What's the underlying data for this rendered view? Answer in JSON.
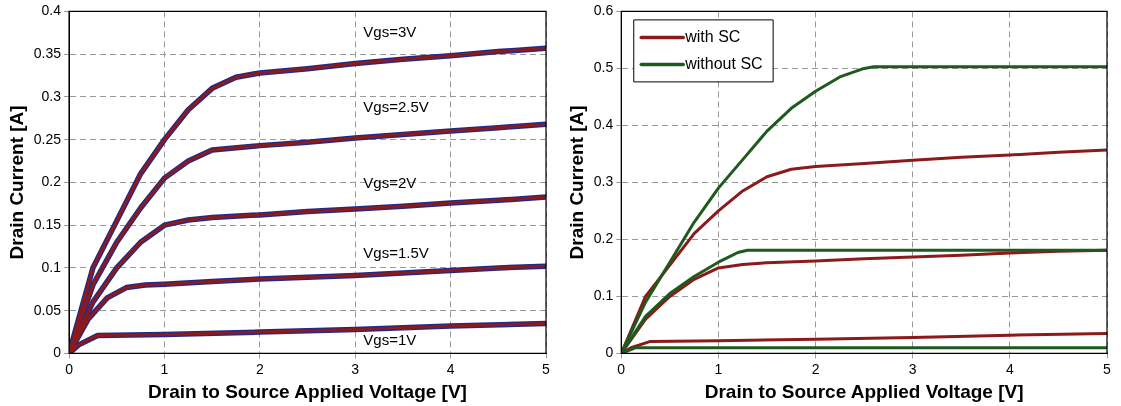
{
  "chart_data": [
    {
      "type": "line",
      "xlabel": "Drain to Source Applied Voltage [V]",
      "ylabel": "Drain Current [A]",
      "xlim": [
        0,
        5
      ],
      "xticks": [
        0,
        1,
        2,
        3,
        4,
        5
      ],
      "ylim": [
        0,
        0.4
      ],
      "yticks": [
        0,
        0.05,
        0.1,
        0.15,
        0.2,
        0.25,
        0.3,
        0.35,
        0.4
      ],
      "grid": true,
      "legend": false,
      "marker": "none",
      "line_style": "solid",
      "annotations": [
        "Vgs=3V",
        "Vgs=2.5V",
        "Vgs=2V",
        "Vgs=1.5V",
        "Vgs=1V"
      ],
      "series": [
        {
          "color": "#1f2a8c",
          "x": [
            0,
            0.25,
            0.5,
            0.75,
            1,
            1.25,
            1.5,
            1.75,
            2,
            2.5,
            3,
            3.5,
            4,
            4.5,
            5
          ],
          "values": [
            0,
            0.1,
            0.155,
            0.21,
            0.25,
            0.285,
            0.31,
            0.323,
            0.328,
            0.333,
            0.339,
            0.344,
            0.348,
            0.353,
            0.357
          ]
        },
        {
          "color": "#1f2a8c",
          "x": [
            0,
            0.25,
            0.5,
            0.75,
            1,
            1.25,
            1.5,
            2,
            2.5,
            3,
            3.5,
            4,
            4.5,
            5
          ],
          "values": [
            0,
            0.08,
            0.13,
            0.17,
            0.205,
            0.225,
            0.238,
            0.243,
            0.247,
            0.252,
            0.256,
            0.26,
            0.264,
            0.268
          ]
        },
        {
          "color": "#1f2a8c",
          "x": [
            0,
            0.25,
            0.5,
            0.75,
            1,
            1.25,
            1.5,
            2,
            2.5,
            3,
            3.5,
            4,
            4.5,
            5
          ],
          "values": [
            0,
            0.06,
            0.1,
            0.13,
            0.15,
            0.156,
            0.159,
            0.162,
            0.166,
            0.169,
            0.172,
            0.176,
            0.179,
            0.183
          ]
        },
        {
          "color": "#1f2a8c",
          "x": [
            0,
            0.2,
            0.4,
            0.6,
            0.8,
            1,
            1.5,
            2,
            2.5,
            3,
            3.5,
            4,
            4.5,
            5
          ],
          "values": [
            0,
            0.04,
            0.065,
            0.077,
            0.08,
            0.081,
            0.084,
            0.087,
            0.089,
            0.091,
            0.094,
            0.097,
            0.1,
            0.102
          ]
        },
        {
          "color": "#1f2a8c",
          "x": [
            0,
            0.1,
            0.3,
            1,
            2,
            3,
            4,
            5
          ],
          "values": [
            0,
            0.01,
            0.021,
            0.022,
            0.025,
            0.028,
            0.032,
            0.035
          ]
        },
        {
          "color": "#8b1a1a",
          "x": [
            0,
            0.25,
            0.5,
            0.75,
            1,
            1.25,
            1.5,
            1.75,
            2,
            2.5,
            3,
            3.5,
            4,
            4.5,
            5
          ],
          "values": [
            0,
            0.1,
            0.155,
            0.21,
            0.25,
            0.285,
            0.31,
            0.323,
            0.328,
            0.333,
            0.339,
            0.344,
            0.348,
            0.353,
            0.357
          ]
        },
        {
          "color": "#8b1a1a",
          "x": [
            0,
            0.25,
            0.5,
            0.75,
            1,
            1.25,
            1.5,
            2,
            2.5,
            3,
            3.5,
            4,
            4.5,
            5
          ],
          "values": [
            0,
            0.08,
            0.13,
            0.17,
            0.205,
            0.225,
            0.238,
            0.243,
            0.247,
            0.252,
            0.256,
            0.26,
            0.264,
            0.268
          ]
        },
        {
          "color": "#8b1a1a",
          "x": [
            0,
            0.25,
            0.5,
            0.75,
            1,
            1.25,
            1.5,
            2,
            2.5,
            3,
            3.5,
            4,
            4.5,
            5
          ],
          "values": [
            0,
            0.06,
            0.1,
            0.13,
            0.15,
            0.156,
            0.159,
            0.162,
            0.166,
            0.169,
            0.172,
            0.176,
            0.179,
            0.183
          ]
        },
        {
          "color": "#8b1a1a",
          "x": [
            0,
            0.2,
            0.4,
            0.6,
            0.8,
            1,
            1.5,
            2,
            2.5,
            3,
            3.5,
            4,
            4.5,
            5
          ],
          "values": [
            0,
            0.04,
            0.065,
            0.077,
            0.08,
            0.081,
            0.084,
            0.087,
            0.089,
            0.091,
            0.094,
            0.097,
            0.1,
            0.102
          ]
        },
        {
          "color": "#8b1a1a",
          "x": [
            0,
            0.1,
            0.3,
            1,
            2,
            3,
            4,
            5
          ],
          "values": [
            0,
            0.01,
            0.021,
            0.022,
            0.025,
            0.028,
            0.032,
            0.035
          ]
        }
      ]
    },
    {
      "type": "line",
      "xlabel": "Drain to Source Applied Voltage [V]",
      "ylabel": "Drain Current [A]",
      "xlim": [
        0,
        5
      ],
      "xticks": [
        0,
        1,
        2,
        3,
        4,
        5
      ],
      "ylim": [
        0,
        0.6
      ],
      "yticks": [
        0,
        0.1,
        0.2,
        0.3,
        0.4,
        0.5,
        0.6
      ],
      "grid": true,
      "legend": "top left",
      "marker": "none",
      "line_style": "solid",
      "series": [
        {
          "name": "with SC",
          "color": "#8b1a1a",
          "x": [
            0,
            0.25,
            0.5,
            0.75,
            1,
            1.25,
            1.5,
            1.75,
            2,
            2.5,
            3,
            3.5,
            4,
            4.5,
            5
          ],
          "values": [
            0,
            0.1,
            0.155,
            0.21,
            0.25,
            0.285,
            0.31,
            0.323,
            0.328,
            0.333,
            0.339,
            0.344,
            0.348,
            0.353,
            0.357
          ]
        },
        {
          "color": "#8b1a1a",
          "x": [
            0,
            0.25,
            0.5,
            0.75,
            1,
            1.25,
            1.5,
            2,
            2.5,
            3,
            3.5,
            4,
            4.5,
            5
          ],
          "values": [
            0,
            0.06,
            0.1,
            0.13,
            0.15,
            0.156,
            0.159,
            0.162,
            0.166,
            0.169,
            0.172,
            0.176,
            0.179,
            0.181
          ]
        },
        {
          "color": "#8b1a1a",
          "x": [
            0,
            0.1,
            0.3,
            1,
            2,
            3,
            4,
            5
          ],
          "values": [
            0,
            0.01,
            0.021,
            0.022,
            0.025,
            0.028,
            0.032,
            0.035
          ]
        },
        {
          "name": "without SC",
          "color": "#1e5a1e",
          "x": [
            0,
            0.25,
            0.5,
            0.75,
            1,
            1.25,
            1.5,
            1.75,
            2,
            2.25,
            2.5,
            2.6,
            5
          ],
          "values": [
            0,
            0.09,
            0.16,
            0.23,
            0.29,
            0.34,
            0.39,
            0.43,
            0.46,
            0.485,
            0.5,
            0.503,
            0.503
          ]
        },
        {
          "color": "#1e5a1e",
          "x": [
            0,
            0.25,
            0.5,
            0.75,
            1,
            1.2,
            1.3,
            5
          ],
          "values": [
            0,
            0.065,
            0.105,
            0.135,
            0.16,
            0.177,
            0.181,
            0.181
          ]
        },
        {
          "color": "#1e5a1e",
          "x": [
            0,
            0.15,
            5
          ],
          "values": [
            0,
            0.01,
            0.01
          ]
        }
      ]
    }
  ]
}
